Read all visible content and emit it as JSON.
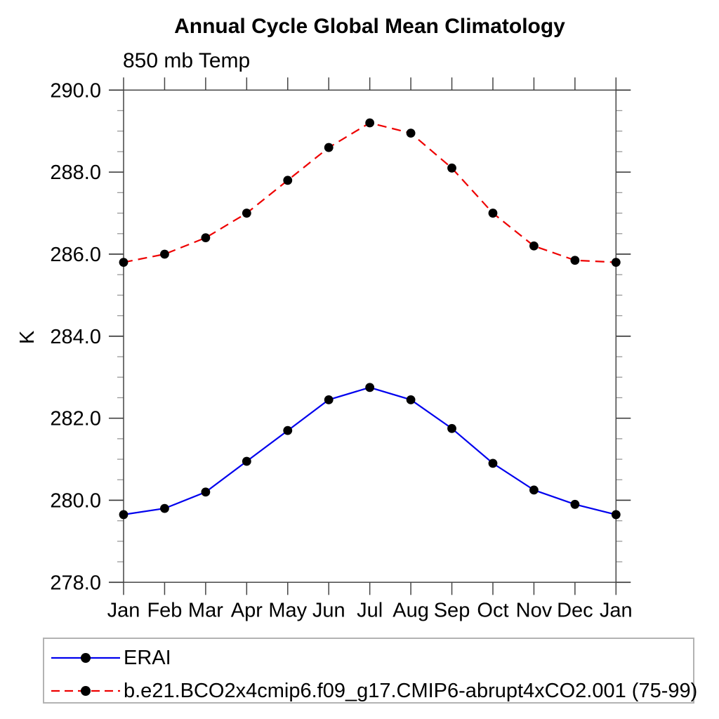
{
  "chart": {
    "title": "Annual Cycle Global Mean Climatology",
    "subtitle": "850 mb Temp",
    "ylabel": "K"
  },
  "legend": {
    "items": [
      {
        "label": "ERAI",
        "color": "#0000ee",
        "dash": ""
      },
      {
        "label": "b.e21.BCO2x4cmip6.f09_g17.CMIP6-abrupt4xCO2.001 (75-99)",
        "color": "#ee0000",
        "dash": "12 7"
      }
    ]
  },
  "chart_data": {
    "type": "line",
    "title": "Annual Cycle Global Mean Climatology",
    "subtitle": "850 mb Temp",
    "xlabel": "",
    "ylabel": "K",
    "categories": [
      "Jan",
      "Feb",
      "Mar",
      "Apr",
      "May",
      "Jun",
      "Jul",
      "Aug",
      "Sep",
      "Oct",
      "Nov",
      "Dec",
      "Jan"
    ],
    "ylim": [
      278.0,
      290.0
    ],
    "ytick_major_step": 2.0,
    "ytick_minor_step": 0.5,
    "grid": false,
    "legend_position": "bottom-left",
    "marker": "filled-circle",
    "marker_color": "#000000",
    "series": [
      {
        "name": "ERAI",
        "color": "#0000ee",
        "line_style": "solid",
        "values": [
          279.65,
          279.8,
          280.2,
          280.95,
          281.7,
          282.45,
          282.75,
          282.45,
          281.75,
          280.9,
          280.25,
          279.9,
          279.65
        ]
      },
      {
        "name": "b.e21.BCO2x4cmip6.f09_g17.CMIP6-abrupt4xCO2.001 (75-99)",
        "color": "#ee0000",
        "line_style": "dashed",
        "values": [
          285.8,
          286.0,
          286.4,
          287.0,
          287.8,
          288.6,
          289.2,
          288.95,
          288.1,
          287.0,
          286.2,
          285.85,
          285.8
        ]
      }
    ]
  }
}
